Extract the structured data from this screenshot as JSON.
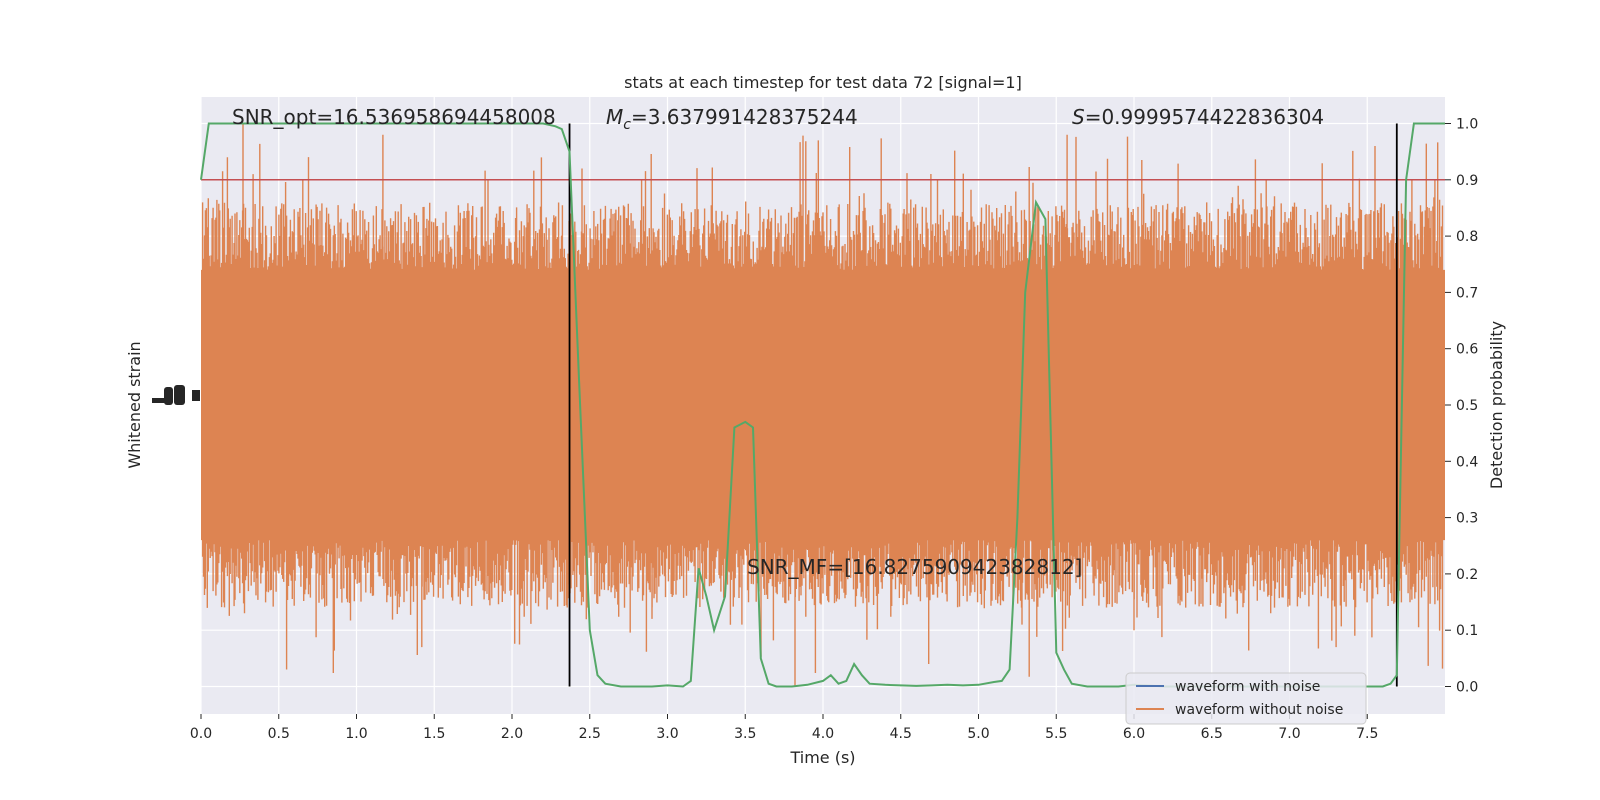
{
  "chart_data": {
    "type": "line",
    "title": "stats at each timestep for test data 72 [signal=1]",
    "xlabel": "Time (s)",
    "ylabel_left": "Whitened strain",
    "ylabel_right": "Detection probability",
    "xlim": [
      0.0,
      8.0
    ],
    "ylim_right": [
      -0.05,
      1.05
    ],
    "x_ticks": [
      "0.0",
      "0.5",
      "1.0",
      "1.5",
      "2.0",
      "2.5",
      "3.0",
      "3.5",
      "4.0",
      "4.5",
      "5.0",
      "5.5",
      "6.0",
      "6.5",
      "7.0",
      "7.5"
    ],
    "y_ticks_right": [
      "0.0",
      "0.1",
      "0.2",
      "0.3",
      "0.4",
      "0.5",
      "0.6",
      "0.7",
      "0.8",
      "0.9",
      "1.0"
    ],
    "grid": true,
    "legend_placement": "lower right",
    "legend": [
      {
        "label": "waveform with noise",
        "color": "#4c72b0"
      },
      {
        "label": "waveform without noise",
        "color": "#dd8452"
      }
    ],
    "annotations": {
      "snr_opt": "SNR_opt=16.536958694458008",
      "mc_symbol": "M",
      "mc_sub": "c",
      "mc_value": "=3.637991428375244",
      "s_symbol": "S",
      "s_value": "=0.9999574422836304",
      "snr_mf": "SNR_MF=[16.827590942382812]"
    },
    "threshold": {
      "y": 0.9,
      "color": "#c44e52"
    },
    "vlines_x": [
      2.37,
      7.69
    ],
    "series": [
      {
        "name": "waveform without noise",
        "color": "#dd8452",
        "style": "dense noise band filling most of the panel, spiky excursions up to ~1.0 and down to ~0.0 on the right-axis scale"
      },
      {
        "color": "#55a868",
        "x": [
          0.0,
          0.05,
          0.1,
          0.2,
          0.4,
          0.6,
          0.8,
          1.0,
          1.2,
          1.4,
          1.6,
          1.8,
          2.0,
          2.2,
          2.28,
          2.32,
          2.37,
          2.43,
          2.5,
          2.55,
          2.6,
          2.7,
          2.8,
          2.9,
          3.0,
          3.1,
          3.15,
          3.2,
          3.25,
          3.3,
          3.37,
          3.43,
          3.5,
          3.55,
          3.6,
          3.65,
          3.7,
          3.75,
          3.8,
          3.9,
          4.0,
          4.05,
          4.1,
          4.15,
          4.2,
          4.25,
          4.3,
          4.4,
          4.5,
          4.6,
          4.7,
          4.8,
          4.9,
          5.0,
          5.1,
          5.15,
          5.2,
          5.25,
          5.3,
          5.37,
          5.43,
          5.5,
          5.55,
          5.6,
          5.7,
          5.8,
          5.9,
          6.0,
          6.2,
          6.5,
          7.0,
          7.3,
          7.5,
          7.6,
          7.65,
          7.69,
          7.75,
          7.8,
          7.85,
          8.0
        ],
        "values": [
          0.9,
          1.0,
          1.0,
          1.0,
          1.0,
          1.0,
          1.0,
          1.0,
          1.0,
          1.0,
          1.0,
          1.0,
          1.0,
          1.0,
          0.995,
          0.99,
          0.95,
          0.55,
          0.1,
          0.02,
          0.005,
          0.0,
          0.0,
          0.0,
          0.002,
          0.0,
          0.01,
          0.21,
          0.16,
          0.1,
          0.16,
          0.46,
          0.47,
          0.46,
          0.05,
          0.005,
          0.0,
          0.0,
          0.0,
          0.003,
          0.01,
          0.02,
          0.005,
          0.01,
          0.04,
          0.02,
          0.005,
          0.003,
          0.002,
          0.001,
          0.002,
          0.003,
          0.002,
          0.003,
          0.008,
          0.01,
          0.03,
          0.3,
          0.7,
          0.86,
          0.83,
          0.06,
          0.03,
          0.005,
          0.0,
          0.0,
          0.0,
          0.003,
          0.0,
          0.0,
          0.0,
          0.0,
          0.0,
          0.0,
          0.005,
          0.02,
          0.9,
          1.0,
          1.0,
          1.0
        ]
      }
    ]
  }
}
